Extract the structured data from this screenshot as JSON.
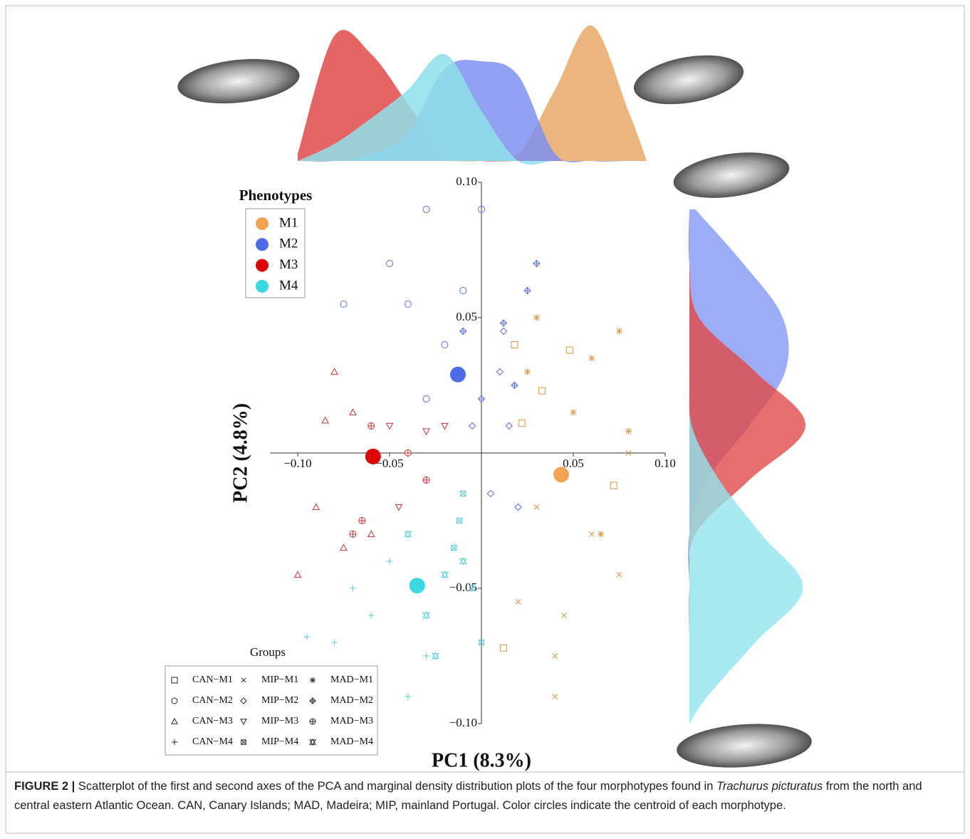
{
  "chart_data": [
    {
      "type": "scatter",
      "xlabel": "PC1 (8.3%)",
      "ylabel": "PC2 (4.8%)",
      "xlim": [
        -0.115,
        0.1
      ],
      "ylim": [
        -0.1,
        0.1
      ],
      "xticks": [
        {
          "value": -0.1,
          "label": "−0.10"
        },
        {
          "value": -0.05,
          "label": "−0.05"
        },
        0.05,
        {
          "value": 0.1,
          "label": "0.10"
        }
      ],
      "yticks": [
        {
          "value": 0.1,
          "label": "0.10"
        },
        0.05,
        {
          "value": -0.05,
          "label": "−0.05"
        },
        {
          "value": -0.1,
          "label": "−0.10"
        }
      ],
      "phenotype_legend_title": "Phenotypes",
      "centroids": [
        {
          "name": "M1",
          "color": "#f2a456",
          "x": [
            0.0434
          ],
          "y": [
            -0.008
          ]
        },
        {
          "name": "M2",
          "color": "#4d6be6",
          "x": [
            -0.0128
          ],
          "y": [
            0.029
          ]
        },
        {
          "name": "M3",
          "color": "#dd0606",
          "x": [
            -0.059
          ],
          "y": [
            -0.0013
          ]
        },
        {
          "name": "M4",
          "color": "#3ad8e0",
          "x": [
            -0.035
          ],
          "y": [
            -0.049
          ]
        }
      ],
      "groups_legend_title": "Groups",
      "series": [
        {
          "name": "CAN−M1",
          "marker": "square",
          "color": "#d9954a",
          "x": [
            0.018,
            0.022,
            0.048,
            0.033,
            0.072,
            0.012
          ],
          "y": [
            0.04,
            0.011,
            0.038,
            0.023,
            -0.012,
            -0.072
          ]
        },
        {
          "name": "CAN−M2",
          "marker": "circle",
          "color": "#5a6fd8",
          "x": [
            -0.03,
            -0.05,
            -0.01,
            -0.04,
            -0.02,
            0.0,
            -0.075,
            -0.03
          ],
          "y": [
            0.09,
            0.07,
            0.06,
            0.055,
            0.04,
            0.09,
            0.055,
            0.02
          ]
        },
        {
          "name": "CAN−M3",
          "marker": "triangle",
          "color": "#c03434",
          "x": [
            -0.08,
            -0.07,
            -0.09,
            -0.1,
            -0.06,
            -0.075,
            -0.085
          ],
          "y": [
            0.03,
            0.015,
            -0.02,
            -0.045,
            -0.03,
            -0.035,
            0.012
          ]
        },
        {
          "name": "CAN−M4",
          "marker": "plus",
          "color": "#5ccbd4",
          "x": [
            -0.07,
            -0.06,
            -0.05,
            -0.08,
            -0.03,
            -0.04,
            -0.095
          ],
          "y": [
            -0.05,
            -0.06,
            -0.04,
            -0.07,
            -0.075,
            -0.09,
            -0.068
          ]
        },
        {
          "name": "MIP−M1",
          "marker": "cross",
          "color": "#d9954a",
          "x": [
            0.03,
            0.06,
            0.045,
            0.075,
            0.04,
            0.08,
            0.02,
            0.04
          ],
          "y": [
            -0.02,
            -0.03,
            -0.06,
            -0.045,
            -0.075,
            0.0,
            -0.055,
            -0.09
          ]
        },
        {
          "name": "MIP−M2",
          "marker": "diamond",
          "color": "#5a6fd8",
          "x": [
            0.01,
            0.015,
            -0.005,
            0.02,
            0.005,
            0.012
          ],
          "y": [
            0.03,
            0.01,
            0.01,
            -0.02,
            -0.015,
            0.045
          ]
        },
        {
          "name": "MIP−M3",
          "marker": "triangle-down",
          "color": "#c03434",
          "x": [
            -0.05,
            -0.03,
            -0.02,
            -0.045
          ],
          "y": [
            0.01,
            0.008,
            0.01,
            -0.02
          ]
        },
        {
          "name": "MIP−M4",
          "marker": "box-cross",
          "color": "#5ccbd4",
          "x": [
            -0.01,
            -0.015,
            -0.005,
            0.0,
            -0.012
          ],
          "y": [
            -0.015,
            -0.035,
            -0.05,
            -0.07,
            -0.025
          ]
        },
        {
          "name": "MAD−M1",
          "marker": "asterisk",
          "color": "#d9954a",
          "x": [
            0.03,
            0.06,
            0.075,
            0.05,
            0.08,
            0.065,
            0.025
          ],
          "y": [
            0.05,
            0.035,
            0.045,
            0.015,
            0.008,
            -0.03,
            0.03
          ]
        },
        {
          "name": "MAD−M2",
          "marker": "diamond-plus",
          "color": "#5a6fd8",
          "x": [
            0.03,
            0.025,
            -0.01,
            0.012,
            0.018,
            0.0
          ],
          "y": [
            0.07,
            0.06,
            0.045,
            0.048,
            0.025,
            0.02
          ]
        },
        {
          "name": "MAD−M3",
          "marker": "circle-plus",
          "color": "#c03434",
          "x": [
            -0.06,
            -0.04,
            -0.03,
            -0.07,
            -0.065
          ],
          "y": [
            0.01,
            0.0,
            -0.01,
            -0.03,
            -0.025
          ]
        },
        {
          "name": "MAD−M4",
          "marker": "star",
          "color": "#5ccbd4",
          "x": [
            -0.04,
            -0.02,
            -0.03,
            -0.025,
            -0.01
          ],
          "y": [
            -0.03,
            -0.045,
            -0.06,
            -0.075,
            -0.04
          ]
        }
      ]
    },
    {
      "type": "density-top",
      "x": [
        -0.1,
        -0.08,
        -0.06,
        -0.04,
        -0.02,
        0,
        0.02,
        0.04,
        0.06,
        0.08,
        0.09
      ],
      "series": [
        {
          "color": "#e04a4a",
          "values": [
            0.05,
            0.88,
            0.75,
            0.4,
            0.05,
            0,
            0,
            0,
            0,
            0,
            0
          ]
        },
        {
          "color": "#e8a868",
          "values": [
            0,
            0,
            0,
            0,
            0,
            0,
            0.05,
            0.5,
            0.95,
            0.35,
            0
          ]
        },
        {
          "color": "#7f90f0",
          "values": [
            0,
            0,
            0.05,
            0.2,
            0.65,
            0.7,
            0.6,
            0.05,
            0,
            0,
            0
          ]
        },
        {
          "color": "#8fe0ea",
          "values": [
            0,
            0.12,
            0.3,
            0.5,
            0.75,
            0.35,
            0,
            0,
            0,
            0,
            0
          ]
        }
      ]
    },
    {
      "type": "density-right",
      "y": [
        0.09,
        0.07,
        0.05,
        0.03,
        0.01,
        -0.01,
        -0.03,
        -0.05,
        -0.07,
        -0.09,
        -0.1
      ],
      "series": [
        {
          "color": "#8598f2",
          "values": [
            0.05,
            0.45,
            0.78,
            0.8,
            0.5,
            0.15,
            0,
            0,
            0,
            0,
            0
          ]
        },
        {
          "color": "#e04a4a",
          "values": [
            0,
            0,
            0.08,
            0.55,
            0.97,
            0.5,
            0.05,
            0,
            0,
            0,
            0
          ]
        },
        {
          "color": "#93e4ec",
          "values": [
            0,
            0,
            0,
            0,
            0.02,
            0.25,
            0.6,
            0.95,
            0.55,
            0.15,
            0
          ]
        }
      ]
    }
  ],
  "caption": {
    "label": "FIGURE 2 |",
    "before": " Scatterplot of the first and second axes of the PCA and marginal density distribution plots of the four morphotypes found in ",
    "italic": "Trachurus picturatus",
    "after": " from the north and central eastern Atlantic Ocean. CAN, Canary Islands; MAD, Madeira; MIP, mainland Portugal. Color circles indicate the centroid of each morphotype."
  }
}
